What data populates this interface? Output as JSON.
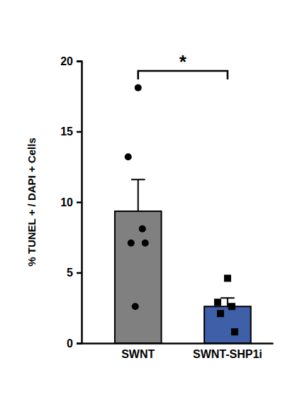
{
  "chart_data": {
    "type": "bar",
    "y_label": "% TUNEL + / DAPI + Cells",
    "categories": [
      "SWNT",
      "SWNT-SHP1i"
    ],
    "values": [
      9.35,
      2.6
    ],
    "errors": [
      2.25,
      0.6
    ],
    "colors": [
      "#808080",
      "#3f5fa8"
    ],
    "points": [
      {
        "values": [
          18.1,
          13.2,
          8.1,
          7.1,
          7.1,
          2.6
        ],
        "marker": "circle"
      },
      {
        "values": [
          4.6,
          2.9,
          2.6,
          2.1,
          0.8
        ],
        "marker": "square"
      }
    ],
    "annotations": [
      {
        "text": "*",
        "y": 19.3
      }
    ],
    "ylim": [
      0,
      20
    ],
    "yticks": [
      0,
      5,
      10,
      15,
      20
    ],
    "grid": false
  }
}
